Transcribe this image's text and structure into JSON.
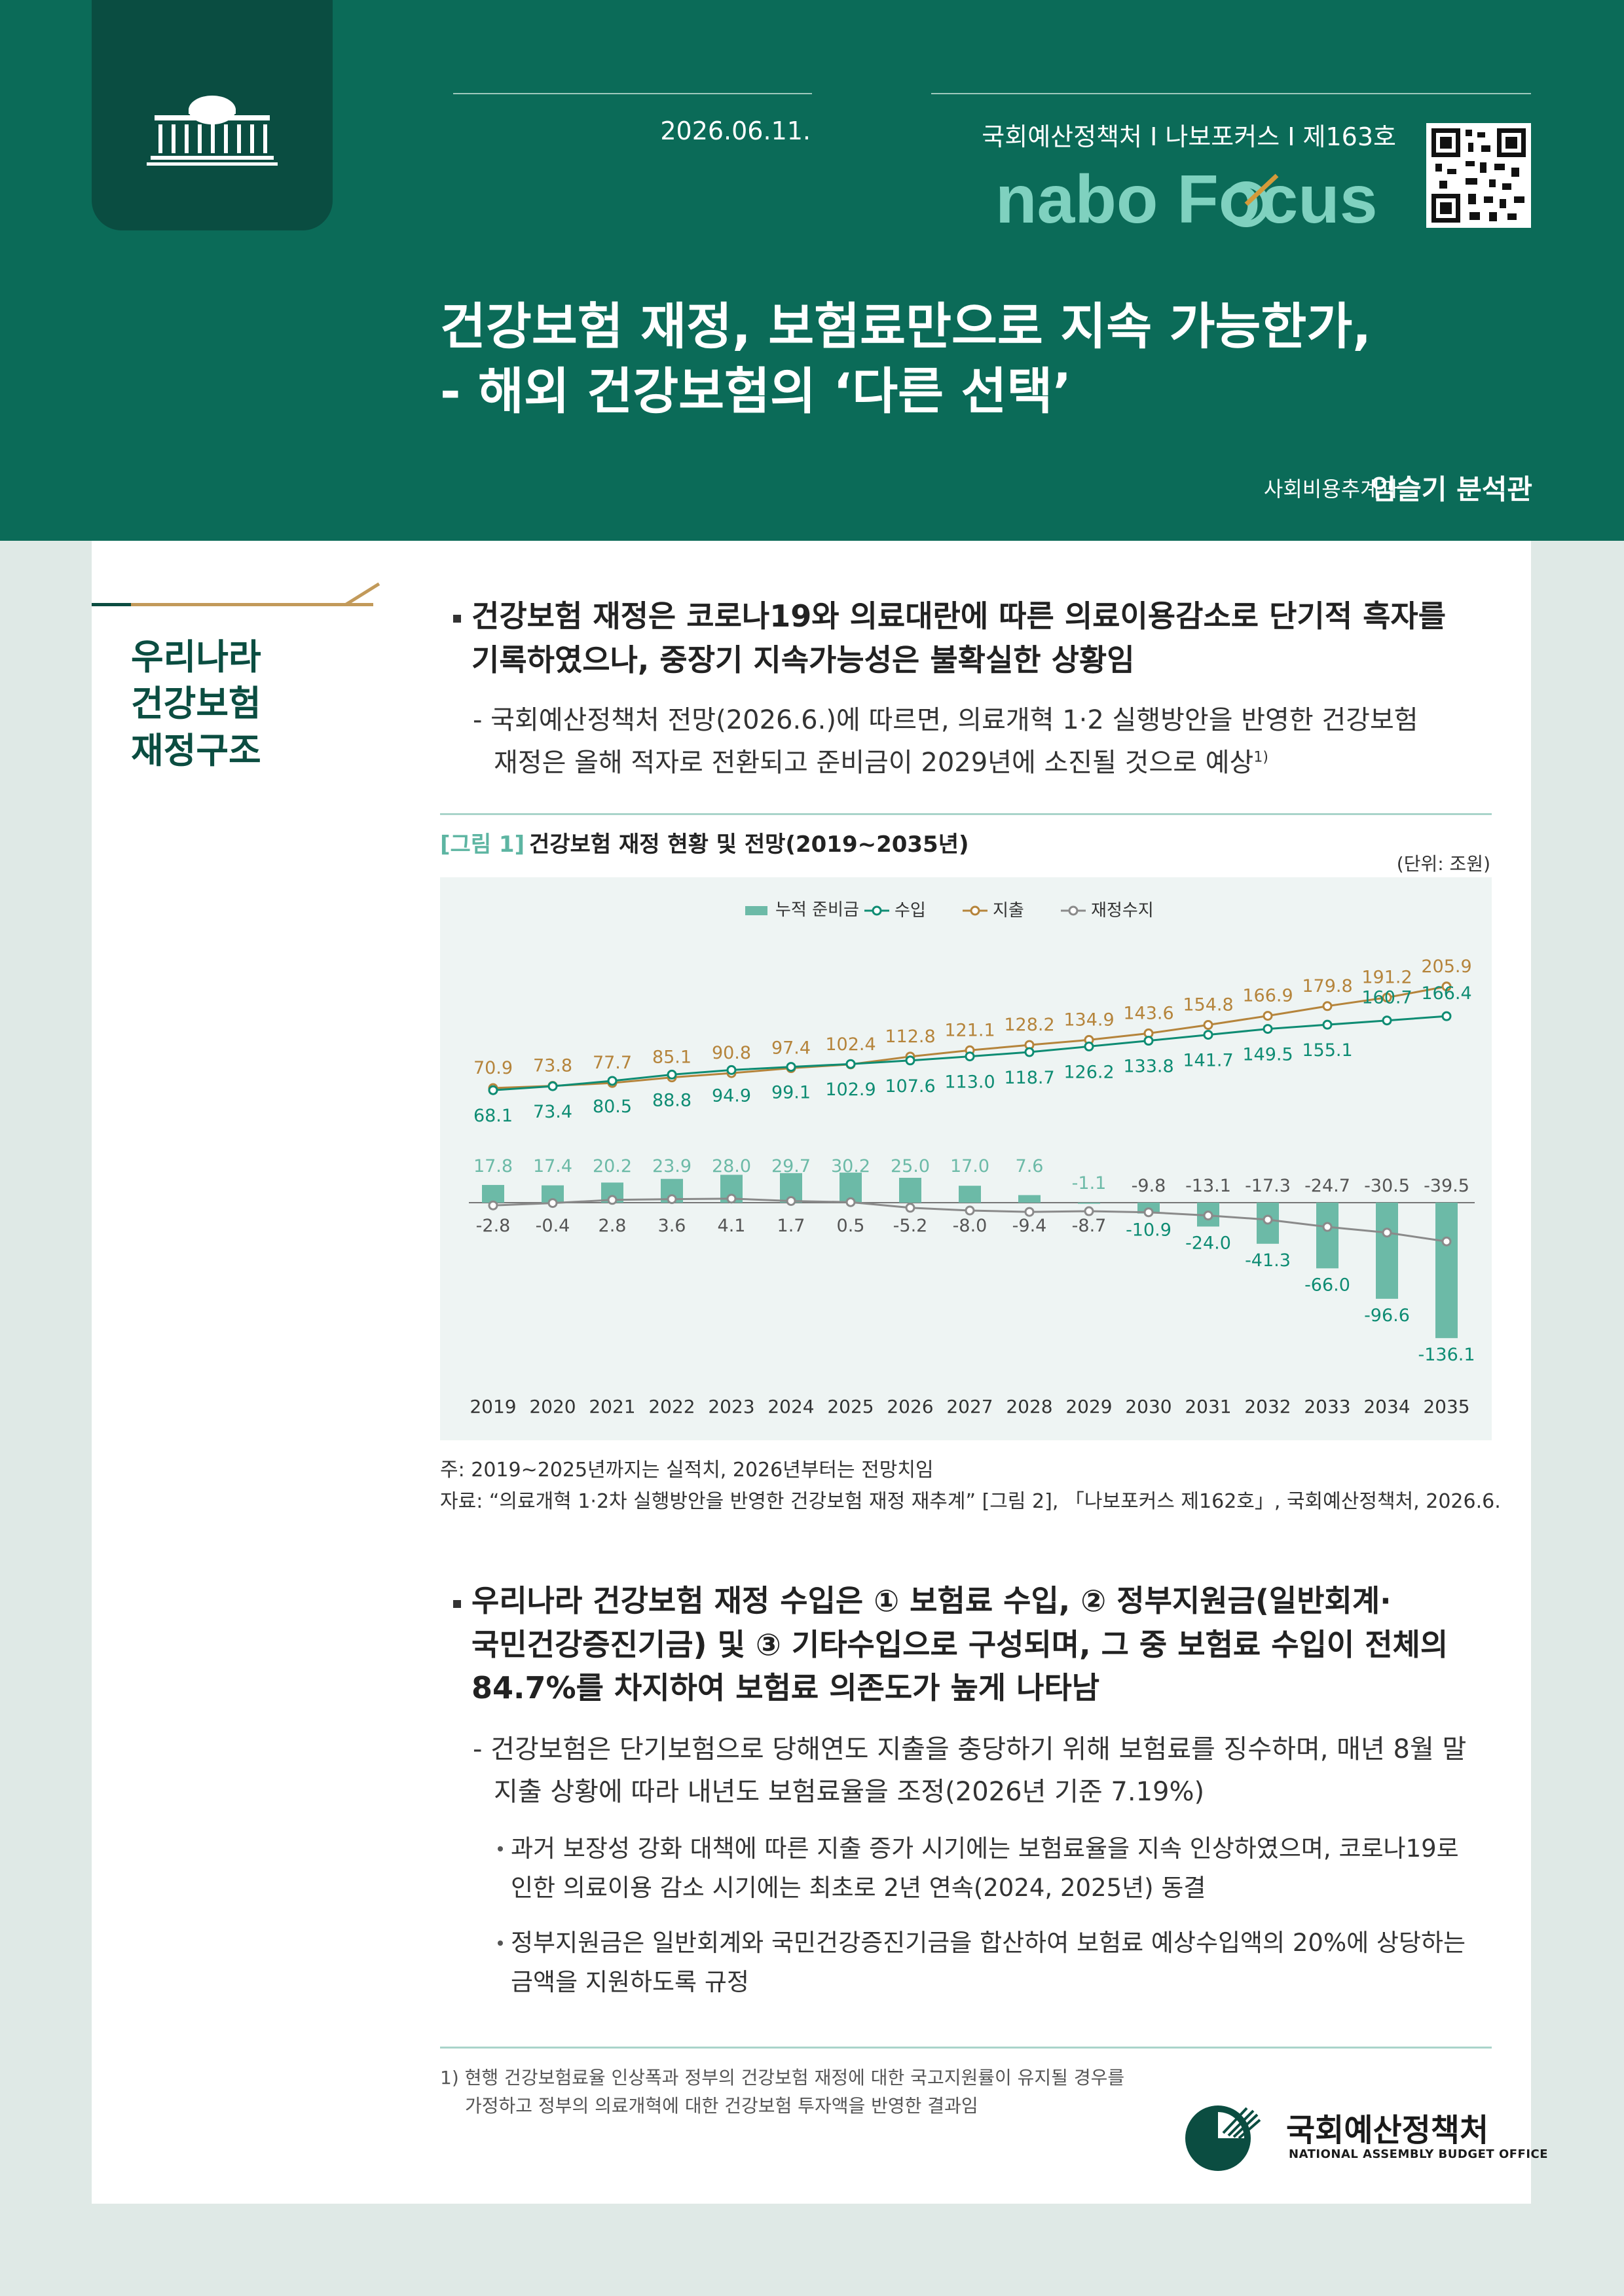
{
  "header": {
    "date": "2026.06.11.",
    "series": "국회예산정책처 I 나보포커스 I 제163호",
    "logo_text": "nabo Focus",
    "title_line1": "건강보험 재정, 보험료만으로 지속 가능한가,",
    "title_line2": "- 해외 건강보험의 ‘다른 선택’",
    "author_dept": "사회비용추계과",
    "author_name": "임슬기 분석관"
  },
  "section": {
    "label_line1": "우리나라",
    "label_line2": "건강보험",
    "label_line3": "재정구조"
  },
  "body": {
    "b1_main_line1": "건강보험 재정은 코로나19와 의료대란에 따른 의료이용감소로 단기적 흑자를",
    "b1_main_line2": "기록하였으나, 중장기 지속가능성은 불확실한 상황임",
    "b1_sub_line1": "- 국회예산정책처 전망(2026.6.)에 따르면, 의료개혁 1·2 실행방안을 반영한 건강보험",
    "b1_sub_line2": "재정은 올해 적자로 전환되고 준비금이 2029년에 소진될 것으로 예상",
    "b1_sup": "1)",
    "b2_main_line1": "우리나라 건강보험 재정 수입은 ① 보험료 수입, ② 정부지원금(일반회계·",
    "b2_main_line2": "국민건강증진기금) 및 ③ 기타수입으로 구성되며, 그 중 보험료 수입이 전체의",
    "b2_main_line3": "84.7%를 차지하여 보험료 의존도가 높게 나타남",
    "b2_sub_line1": "- 건강보험은 단기보험으로 당해연도 지출을 충당하기 위해 보험료를 징수하며, 매년 8월 말",
    "b2_sub_line2": "지출 상황에 따라 내년도 보험료율을 조정(2026년 기준 7.19%)",
    "b2_ss1_line1": "과거 보장성 강화 대책에 따른 지출 증가 시기에는 보험료율을 지속 인상하였으며, 코로나19로",
    "b2_ss1_line2": "인한 의료이용 감소 시기에는 최초로 2년 연속(2024, 2025년) 동결",
    "b2_ss2_line1": "정부지원금은 일반회계와 국민건강증진기금을 합산하여 보험료 예상수입액의 20%에 상당하는",
    "b2_ss2_line2": "금액을 지원하도록 규정"
  },
  "figure": {
    "label": "[그림 1]",
    "title": "건강보험 재정 현황 및 전망(2019~2035년)",
    "unit": "(단위: 조원)",
    "note1": "주: 2019~2025년까지는 실적치, 2026년부터는 전망치임",
    "note2": "자료: “의료개혁 1·2차 실행방안을 반영한 건강보험 재정 재추계” [그림 2], 「나보포커스 제162호」, 국회예산정책처, 2026.6."
  },
  "footnote": {
    "line1": "1)  현행 건강보험료율 인상폭과 정부의 건강보험 재정에 대한 국고지원률이 유지될 경우를",
    "line2": "가정하고 정부의 의료개혁에 대한 건강보험 투자액을 반영한 결과임"
  },
  "footer": {
    "org_name": "국회예산정책처",
    "org_name_en": "NATIONAL ASSEMBLY BUDGET OFFICE"
  },
  "colors": {
    "header_green": "#0b6b58",
    "dark_green": "#0a4d41",
    "revenue": "#0e8c73",
    "expense": "#b5843b",
    "balance": "#8a8a8a",
    "reserve": "#6cbaa7"
  },
  "chart_data": {
    "type": "bar",
    "categories": [
      "2019",
      "2020",
      "2021",
      "2022",
      "2023",
      "2024",
      "2025",
      "2026",
      "2027",
      "2028",
      "2029",
      "2030",
      "2031",
      "2032",
      "2033",
      "2034",
      "2035"
    ],
    "series": [
      {
        "name": "누적 준비금",
        "kind": "bar",
        "values": [
          17.8,
          17.4,
          20.2,
          23.9,
          28.0,
          29.7,
          30.2,
          25.0,
          17.0,
          7.6,
          -1.1,
          -10.9,
          -24.0,
          -41.3,
          -66.0,
          -96.6,
          -136.1
        ]
      },
      {
        "name": "수입",
        "kind": "line",
        "values": [
          68.1,
          73.4,
          80.5,
          88.8,
          94.9,
          99.1,
          102.9,
          107.6,
          113.0,
          118.7,
          126.2,
          133.8,
          141.7,
          149.5,
          155.1,
          160.7,
          166.4
        ]
      },
      {
        "name": "지출",
        "kind": "line",
        "values": [
          70.9,
          73.8,
          77.7,
          85.1,
          90.8,
          97.4,
          102.4,
          112.8,
          121.1,
          128.2,
          134.9,
          143.6,
          154.8,
          166.9,
          179.8,
          191.2,
          205.9
        ]
      },
      {
        "name": "재정수지",
        "kind": "line",
        "values": [
          -2.8,
          -0.4,
          2.8,
          3.6,
          4.1,
          1.7,
          0.5,
          -5.2,
          -8.0,
          -9.4,
          -8.7,
          -9.8,
          -13.1,
          -17.3,
          -24.7,
          -30.5,
          -39.5
        ]
      }
    ],
    "legend_position": "top-center",
    "unit": "조원"
  }
}
